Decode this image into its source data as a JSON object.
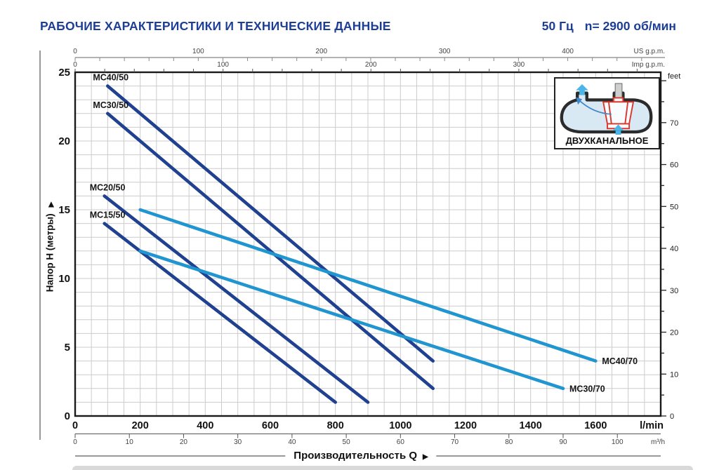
{
  "header": {
    "title": "РАБОЧИЕ ХАРАКТЕРИСТИКИ И ТЕХНИЧЕСКИЕ ДАННЫЕ",
    "frequency": "50 Гц",
    "speed": "n= 2900 об/мин",
    "accent_color": "#1c3e96"
  },
  "inset": {
    "label": "ДВУХКАНАЛЬНОЕ"
  },
  "chart_data": {
    "type": "line",
    "x_axis_main": {
      "label": "Производительность Q",
      "unit": "l/min",
      "min": 0,
      "max": 1800,
      "ticks": [
        0,
        200,
        400,
        600,
        800,
        1000,
        1200,
        1400,
        1600
      ]
    },
    "x_axis_secondary": {
      "unit": "m³/h",
      "ticks": [
        0,
        10,
        20,
        30,
        40,
        50,
        60,
        70,
        80,
        90,
        100
      ],
      "lpm_per_unit": 16.6667
    },
    "x_axis_us_gpm": {
      "unit": "US g.p.m.",
      "ticks": [
        0,
        100,
        200,
        300,
        400
      ],
      "minor_step": 20,
      "lpm_per_unit": 3.7854
    },
    "x_axis_imp_gpm": {
      "unit": "Imp g.p.m.",
      "ticks": [
        0,
        100,
        200,
        300
      ],
      "minor_step": 20,
      "lpm_per_unit": 4.5461
    },
    "y_axis_main": {
      "label": "Напор H (метры)",
      "min": 0,
      "max": 25,
      "ticks": [
        0,
        5,
        10,
        15,
        20,
        25
      ]
    },
    "y_axis_feet": {
      "unit": "feet",
      "ticks": [
        0,
        10,
        20,
        30,
        40,
        50,
        60,
        70
      ],
      "minor_step": 5,
      "m_per_unit": 0.3048
    },
    "grid": {
      "color": "#cccccc",
      "x_step_lpm": 50,
      "y_step_m": 1
    },
    "series": [
      {
        "name": "MC40/50",
        "color": "#1f418f",
        "label_pos": "start",
        "points": [
          [
            100,
            24
          ],
          [
            1100,
            4
          ]
        ]
      },
      {
        "name": "MC30/50",
        "color": "#1f418f",
        "label_pos": "start",
        "points": [
          [
            100,
            22
          ],
          [
            1100,
            2
          ]
        ]
      },
      {
        "name": "MC20/50",
        "color": "#1f418f",
        "label_pos": "start",
        "points": [
          [
            90,
            16
          ],
          [
            900,
            1
          ]
        ]
      },
      {
        "name": "MC15/50",
        "color": "#1f418f",
        "label_pos": "start",
        "points": [
          [
            90,
            14
          ],
          [
            800,
            1
          ]
        ]
      },
      {
        "name": "MC40/70",
        "color": "#2095d0",
        "label_pos": "end",
        "points": [
          [
            200,
            15
          ],
          [
            1600,
            4
          ]
        ]
      },
      {
        "name": "MC30/70",
        "color": "#2095d0",
        "label_pos": "end",
        "points": [
          [
            200,
            12
          ],
          [
            1500,
            2
          ]
        ]
      }
    ]
  }
}
